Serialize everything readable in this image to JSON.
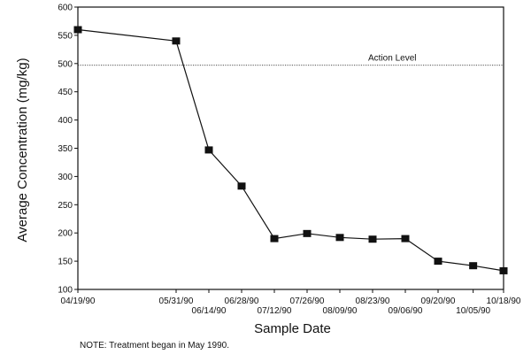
{
  "chart_data": {
    "type": "line",
    "title": "",
    "xlabel": "Sample Date",
    "ylabel": "Average Concentration (mg/kg)",
    "ylim": [
      100,
      600
    ],
    "yticks": [
      100,
      150,
      200,
      250,
      300,
      350,
      400,
      450,
      500,
      550,
      600
    ],
    "grid": false,
    "x": [
      "04/19/90",
      "05/31/90",
      "06/14/90",
      "06/28/90",
      "07/12/90",
      "07/26/90",
      "08/09/90",
      "08/23/90",
      "09/06/90",
      "09/20/90",
      "10/05/90",
      "10/18/90"
    ],
    "series": [
      {
        "values": [
          560,
          540,
          347,
          283,
          190,
          199,
          192,
          189,
          190,
          150,
          142,
          133
        ]
      }
    ],
    "reference_line": {
      "label": "Action Level",
      "value": 497
    }
  },
  "note": "NOTE:  Treatment began in May 1990."
}
